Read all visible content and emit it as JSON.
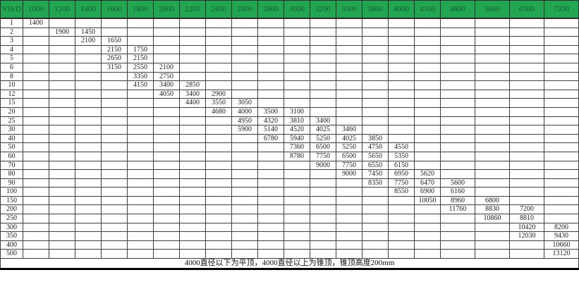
{
  "table": {
    "columns": [
      "VH/D",
      "1000",
      "1200",
      "1400",
      "1600",
      "1800",
      "2000",
      "2200",
      "2400",
      "2600",
      "2800",
      "3000",
      "3200",
      "3500",
      "3800",
      "4000",
      "4500",
      "4800",
      "5600",
      "6300",
      "7200"
    ],
    "rows": [
      {
        "label": "1",
        "cells": {
          "1000": "1400"
        }
      },
      {
        "label": "2",
        "cells": {
          "1200": "1900",
          "1400": "1450"
        }
      },
      {
        "label": "3",
        "cells": {
          "1400": "2100",
          "1600": "1650"
        }
      },
      {
        "label": "4",
        "cells": {
          "1600": "2150",
          "1800": "1750"
        }
      },
      {
        "label": "5",
        "cells": {
          "1600": "2650",
          "1800": "2150"
        }
      },
      {
        "label": "6",
        "cells": {
          "1600": "3150",
          "1800": "2550",
          "2000": "2100"
        }
      },
      {
        "label": "8",
        "cells": {
          "1800": "3350",
          "2000": "2750"
        }
      },
      {
        "label": "10",
        "cells": {
          "1800": "4150",
          "2000": "3400",
          "2200": "2850"
        }
      },
      {
        "label": "12",
        "cells": {
          "2000": "4050",
          "2200": "3400",
          "2400": "2900"
        }
      },
      {
        "label": "15",
        "cells": {
          "2200": "4400",
          "2400": "3550",
          "2600": "3050"
        }
      },
      {
        "label": "20",
        "cells": {
          "2400": "4680",
          "2600": "4000",
          "2800": "3500",
          "3000": "3100"
        }
      },
      {
        "label": "25",
        "cells": {
          "2600": "4950",
          "2800": "4320",
          "3000": "3810",
          "3200": "3400"
        }
      },
      {
        "label": "30",
        "cells": {
          "2600": "5900",
          "2800": "5140",
          "3000": "4520",
          "3200": "4025",
          "3500": "3460"
        }
      },
      {
        "label": "40",
        "cells": {
          "2800": "6780",
          "3000": "5940",
          "3200": "5250",
          "3500": "4025",
          "3800": "3850"
        }
      },
      {
        "label": "50",
        "cells": {
          "3000": "7360",
          "3200": "6500",
          "3500": "5250",
          "3800": "4750",
          "4000": "4550"
        }
      },
      {
        "label": "60",
        "cells": {
          "3000": "8780",
          "3200": "7750",
          "3500": "6500",
          "3800": "5650",
          "4000": "5350"
        }
      },
      {
        "label": "70",
        "cells": {
          "3200": "9000",
          "3500": "7750",
          "3800": "6550",
          "4000": "6150"
        }
      },
      {
        "label": "80",
        "cells": {
          "3500": "9000",
          "3800": "7450",
          "4000": "6950",
          "4500": "5620"
        }
      },
      {
        "label": "90",
        "cells": {
          "3800": "8350",
          "4000": "7750",
          "4500": "6470",
          "4800": "5600"
        }
      },
      {
        "label": "100",
        "cells": {
          "4000": "8550",
          "4500": "6900",
          "4800": "6160"
        }
      },
      {
        "label": "150",
        "cells": {
          "4500": "10050",
          "4800": "8960",
          "5600": "6800"
        }
      },
      {
        "label": "200",
        "cells": {
          "4800": "11760",
          "5600": "8830",
          "6300": "7200"
        }
      },
      {
        "label": "250",
        "cells": {
          "5600": "10860",
          "6300": "8810"
        }
      },
      {
        "label": "300",
        "cells": {
          "6300": "10420",
          "7200": "8200"
        }
      },
      {
        "label": "350",
        "cells": {
          "6300": "12030",
          "7200": "9430"
        }
      },
      {
        "label": "400",
        "cells": {
          "7200": "10660"
        }
      },
      {
        "label": "500",
        "cells": {
          "7200": "13120"
        }
      }
    ],
    "footer_note": "4000直径以下为平顶，4000直径以上为锥顶，锥顶高度200mm"
  },
  "colors": {
    "header_bg": "#22a651",
    "header_text": "#155c31",
    "grid_line": "#3f3f3f",
    "cell_text": "#1d1d1d"
  }
}
